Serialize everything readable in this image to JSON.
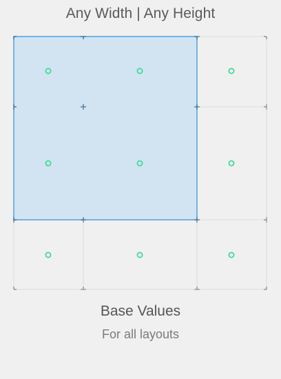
{
  "size_class": {
    "title": "Any Width | Any Height"
  },
  "selection": {
    "columns": [
      "compact",
      "any"
    ],
    "rows": [
      "compact",
      "any"
    ],
    "fill_color": "#d2e4f2",
    "border_color": "#4f9fdc"
  },
  "grid": {
    "columns": [
      "compact",
      "any",
      "regular"
    ],
    "rows": [
      "compact",
      "any",
      "regular"
    ],
    "line_color": "#dcdcdc",
    "tick_color": "#8a8a8a",
    "dot_color": "#3ddc97"
  },
  "base": {
    "title": "Base Values",
    "subtitle": "For all layouts"
  }
}
